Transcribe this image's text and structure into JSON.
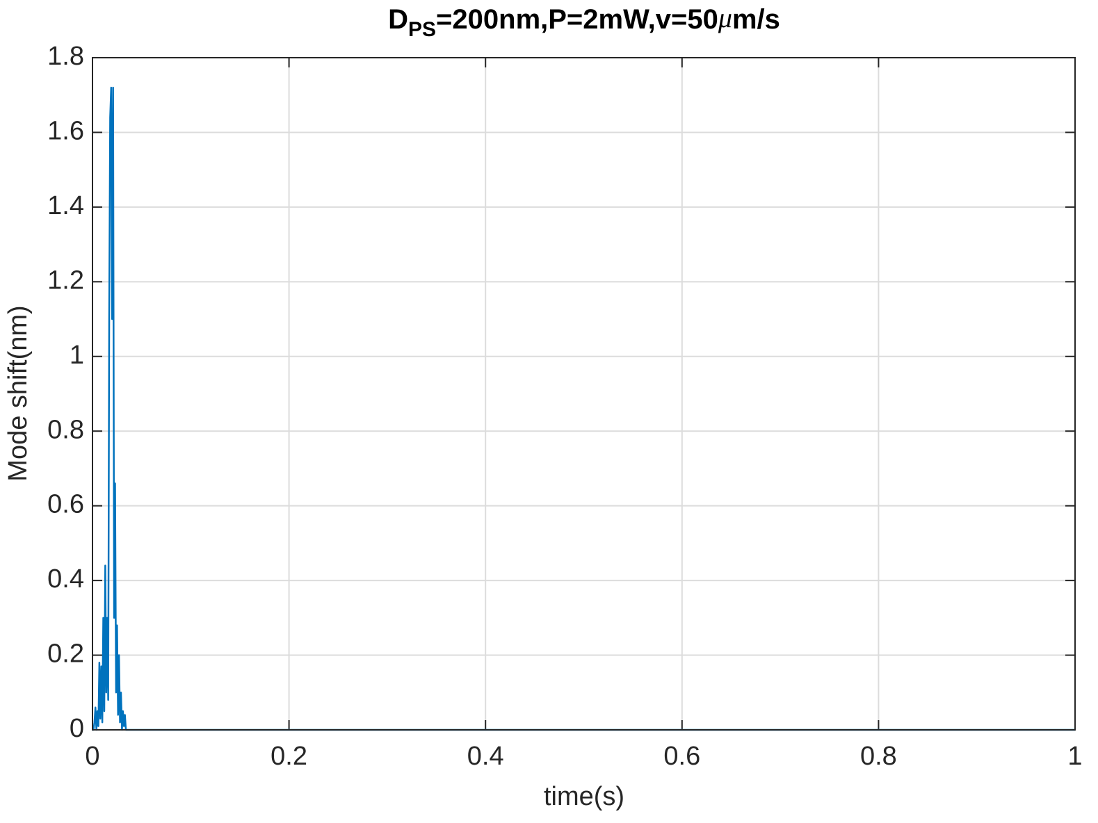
{
  "chart_data": {
    "type": "line",
    "title": [
      "D",
      "PS",
      "=200nm,P=2mW,v=50",
      "μ",
      "m/s"
    ],
    "xlabel": "time(s)",
    "ylabel": "Mode shift(nm)",
    "color": "#0072BD",
    "x": [
      0,
      0.001,
      0.002,
      0.003,
      0.004,
      0.005,
      0.006,
      0.007,
      0.008,
      0.009,
      0.01,
      0.011,
      0.012,
      0.013,
      0.014,
      0.015,
      0.016,
      0.017,
      0.018,
      0.019,
      0.02,
      0.021,
      0.022,
      0.023,
      0.024,
      0.025,
      0.026,
      0.027,
      0.028,
      0.029,
      0.03,
      0.031,
      0.032,
      0.033,
      0.034,
      0.035,
      0.04,
      1
    ],
    "values": [
      0,
      0,
      0.02,
      0.06,
      0,
      0.05,
      0.01,
      0.18,
      0.03,
      0.17,
      0.02,
      0.3,
      0.05,
      0.44,
      0.1,
      0.3,
      0.08,
      1.1,
      1.64,
      1.72,
      1.1,
      1.72,
      0.3,
      0.66,
      0.1,
      0.28,
      0.04,
      0.2,
      0.02,
      0.1,
      0,
      0.05,
      0.01,
      0.04,
      0,
      0,
      0,
      0
    ],
    "xlim": [
      0,
      1
    ],
    "xticks": [
      0,
      0.2,
      0.4,
      0.6,
      0.8,
      1
    ],
    "ylim": [
      0,
      1.8
    ],
    "yticks": [
      0,
      0.2,
      0.4,
      0.6,
      0.8,
      1,
      1.2,
      1.4,
      1.6,
      1.8
    ],
    "grid": true
  }
}
